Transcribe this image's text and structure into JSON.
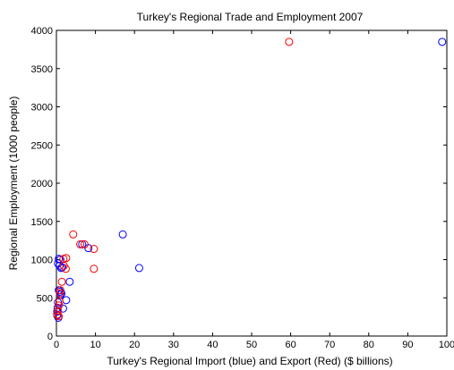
{
  "chart_data": {
    "type": "scatter",
    "title": "Turkey's Regional Trade and Employment 2007",
    "xlabel": "Turkey's Regional Import (blue) and Export (Red) ($ billions)",
    "ylabel": "Regional Employment (1000 people)",
    "xlim": [
      0,
      100
    ],
    "ylim": [
      0,
      4000
    ],
    "xticks": [
      0,
      10,
      20,
      30,
      40,
      50,
      60,
      70,
      80,
      90,
      100
    ],
    "yticks": [
      0,
      500,
      1000,
      1500,
      2000,
      2500,
      3000,
      3500,
      4000
    ],
    "grid": false,
    "marker": "circle-open",
    "series": [
      {
        "color": "#0000ff",
        "points": [
          [
            98.8,
            3850
          ],
          [
            17.0,
            1330
          ],
          [
            21.2,
            890
          ],
          [
            8.2,
            1150
          ],
          [
            6.6,
            1200
          ],
          [
            3.4,
            710
          ],
          [
            2.5,
            470
          ],
          [
            1.7,
            360
          ],
          [
            1.0,
            1000
          ],
          [
            0.6,
            1010
          ],
          [
            0.4,
            950
          ],
          [
            0.8,
            920
          ],
          [
            1.2,
            890
          ],
          [
            0.9,
            580
          ],
          [
            1.3,
            560
          ],
          [
            0.6,
            600
          ],
          [
            0.4,
            440
          ],
          [
            0.3,
            370
          ],
          [
            0.2,
            320
          ],
          [
            0.2,
            270
          ],
          [
            0.5,
            240
          ],
          [
            1.5,
            900
          ],
          [
            1.1,
            540
          ]
        ]
      },
      {
        "color": "#ff0000",
        "points": [
          [
            59.6,
            3850
          ],
          [
            4.3,
            1330
          ],
          [
            6.1,
            1200
          ],
          [
            7.2,
            1200
          ],
          [
            9.6,
            1140
          ],
          [
            9.6,
            880
          ],
          [
            2.5,
            1020
          ],
          [
            1.8,
            1010
          ],
          [
            2.4,
            880
          ],
          [
            1.9,
            920
          ],
          [
            1.4,
            710
          ],
          [
            1.0,
            600
          ],
          [
            0.9,
            560
          ],
          [
            0.8,
            450
          ],
          [
            0.6,
            400
          ],
          [
            0.4,
            330
          ],
          [
            0.6,
            260
          ],
          [
            0.2,
            280
          ]
        ]
      }
    ]
  }
}
